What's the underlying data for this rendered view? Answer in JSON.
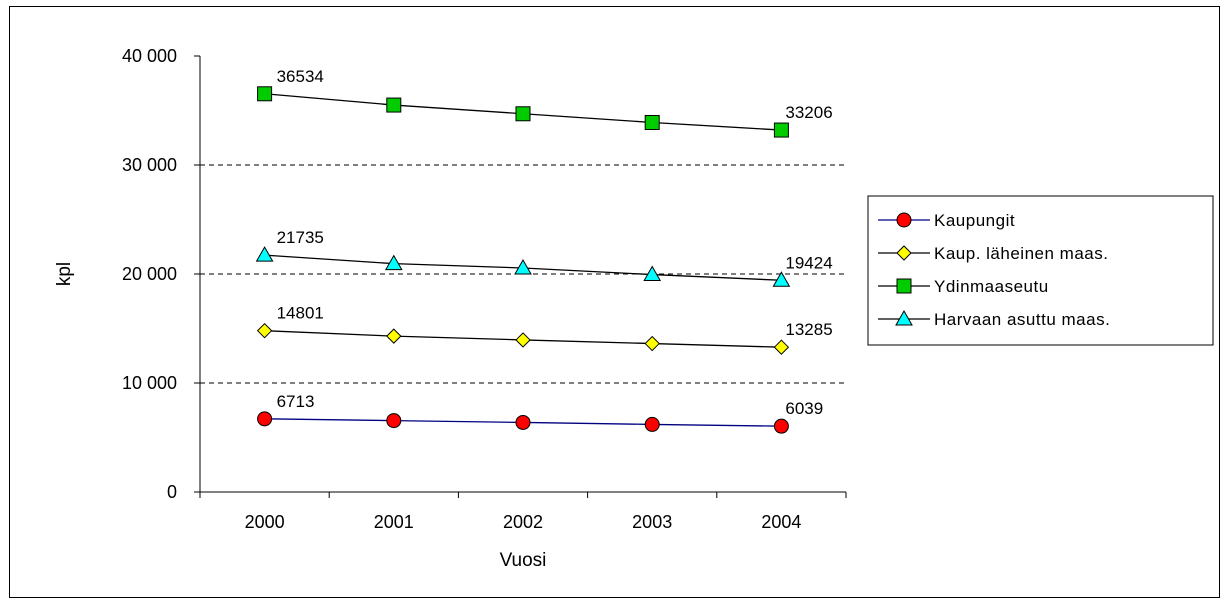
{
  "chart_data": {
    "type": "line",
    "categories": [
      "2000",
      "2001",
      "2002",
      "2003",
      "2004"
    ],
    "xlabel": "Vuosi",
    "ylabel": "kpl",
    "ylim": [
      0,
      40000
    ],
    "yticks": [
      0,
      10000,
      20000,
      30000,
      40000
    ],
    "ytick_labels": [
      "0",
      "10 000",
      "20 000",
      "30 000",
      "40 000"
    ],
    "grid": "horizontal dashed at 10 000, 20 000, 30 000",
    "legend_position": "right",
    "series": [
      {
        "name": "Kaupungit",
        "values": [
          6713,
          6550,
          6380,
          6200,
          6039
        ],
        "marker": "circle",
        "marker_color": "#ff0000",
        "line_color": "#000080",
        "labels": [
          {
            "index": 0,
            "text": "6713"
          },
          {
            "index": 4,
            "text": "6039"
          }
        ]
      },
      {
        "name": "Kaup. läheinen maas.",
        "values": [
          14801,
          14300,
          13950,
          13620,
          13285
        ],
        "marker": "diamond",
        "marker_color": "#ffff00",
        "line_color": "#000000",
        "labels": [
          {
            "index": 0,
            "text": "14801"
          },
          {
            "index": 4,
            "text": "13285"
          }
        ]
      },
      {
        "name": "Ydinmaaseutu",
        "values": [
          36534,
          35500,
          34700,
          33900,
          33206
        ],
        "marker": "square",
        "marker_color": "#00cc00",
        "line_color": "#000000",
        "labels": [
          {
            "index": 0,
            "text": "36534"
          },
          {
            "index": 4,
            "text": "33206"
          }
        ]
      },
      {
        "name": "Harvaan asuttu maas.",
        "values": [
          21735,
          20950,
          20550,
          19950,
          19424
        ],
        "marker": "triangle",
        "marker_color": "#00ffff",
        "line_color": "#000000",
        "labels": [
          {
            "index": 0,
            "text": "21735"
          },
          {
            "index": 4,
            "text": "19424"
          }
        ]
      }
    ]
  }
}
